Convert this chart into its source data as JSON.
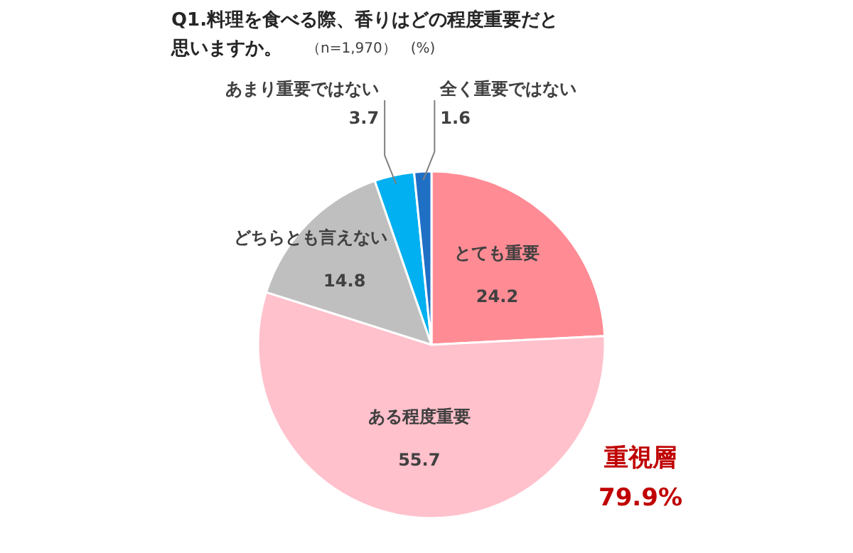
{
  "chart_data": {
    "type": "pie",
    "title": "Q1.料理を食べる際、香りはどの程度重要だと思いますか。",
    "subtitle": "（n=1,970）　(%)",
    "categories": [
      "とても重要",
      "ある程度重要",
      "どちらとも言えない",
      "あまり重要ではない",
      "全く重要ではない"
    ],
    "values": [
      24.2,
      55.7,
      14.8,
      3.7,
      1.6
    ],
    "colors": [
      "#ff8c94",
      "#ffc1cc",
      "#bfbfbf",
      "#00b0f0",
      "#1f6fc5"
    ],
    "data_labels": true,
    "annotations": [
      "重視層\n79.9%"
    ]
  }
}
